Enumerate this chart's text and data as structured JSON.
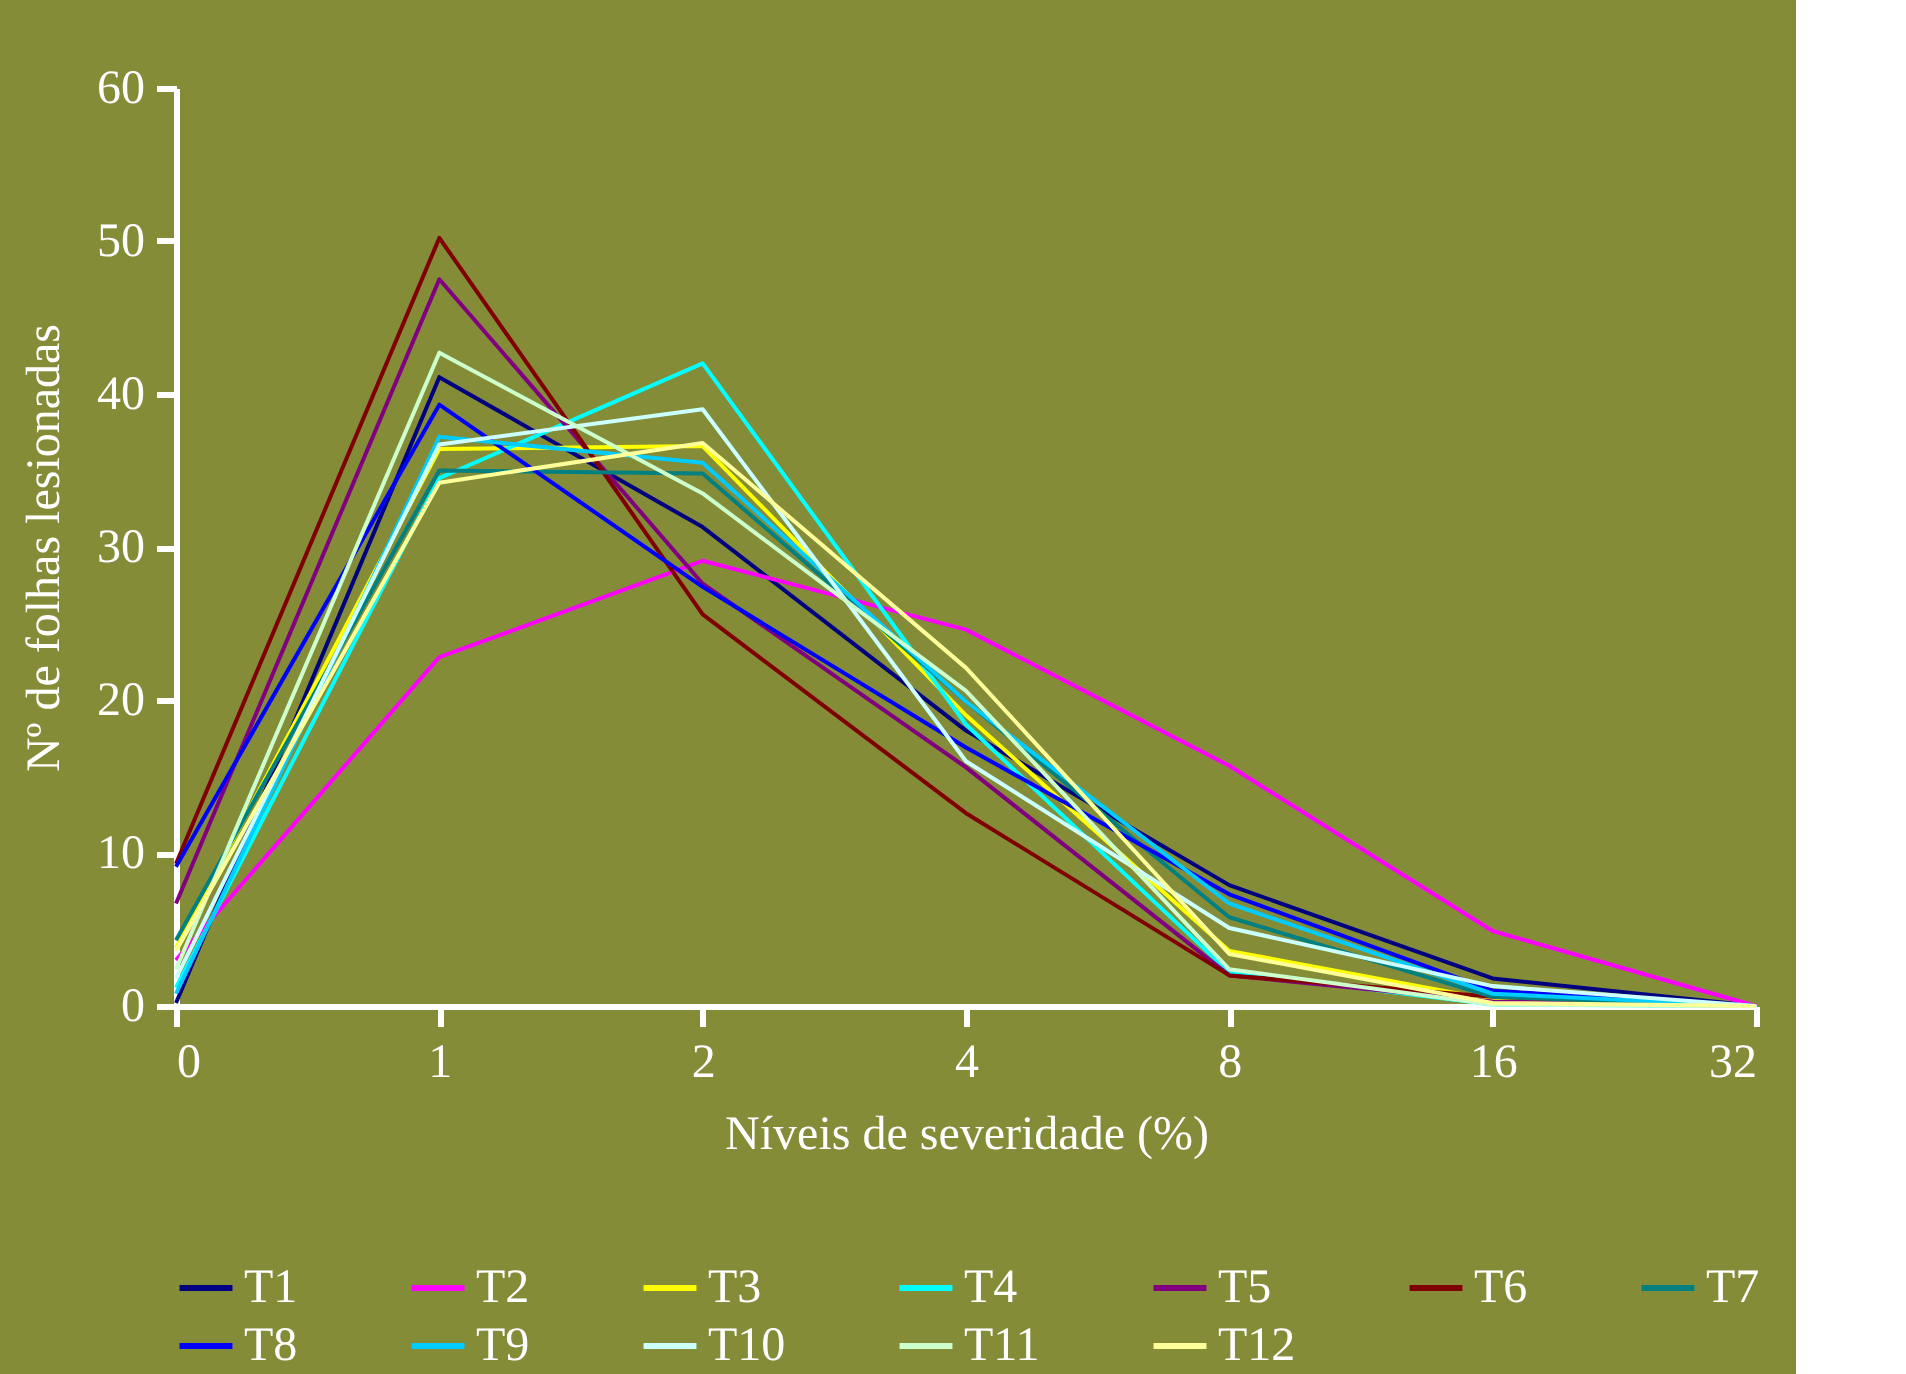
{
  "chart_data": {
    "type": "line",
    "xlabel": "Níveis de severidade (%)",
    "ylabel": "Nº de folhas lesionadas",
    "categories": [
      "0",
      "1",
      "2",
      "4",
      "8",
      "16",
      "32"
    ],
    "ylim": [
      0,
      60
    ],
    "yticks": [
      0,
      10,
      20,
      30,
      40,
      50,
      60
    ],
    "grid": false,
    "legend": "bottom",
    "marker": "none",
    "line_style": "solid",
    "series": [
      {
        "name": "T1",
        "color": "#000080",
        "values": [
          0.2,
          41.1,
          31.3,
          18.0,
          7.9,
          1.8,
          0
        ]
      },
      {
        "name": "T2",
        "color": "#ff00ff",
        "values": [
          3.0,
          22.8,
          29.1,
          24.6,
          15.7,
          4.9,
          0
        ]
      },
      {
        "name": "T3",
        "color": "#ffff00",
        "values": [
          3.8,
          36.4,
          36.6,
          19.0,
          3.6,
          0.4,
          0
        ]
      },
      {
        "name": "T4",
        "color": "#00ffff",
        "values": [
          1.2,
          34.5,
          42.0,
          18.4,
          2.2,
          0.1,
          0
        ]
      },
      {
        "name": "T5",
        "color": "#800080",
        "values": [
          6.7,
          47.5,
          27.6,
          15.6,
          2.0,
          0.3,
          0
        ]
      },
      {
        "name": "T6",
        "color": "#800000",
        "values": [
          9.3,
          50.2,
          25.6,
          12.6,
          2.0,
          0.6,
          0
        ]
      },
      {
        "name": "T7",
        "color": "#008080",
        "values": [
          4.3,
          35.0,
          34.8,
          19.9,
          5.8,
          0.6,
          0
        ]
      },
      {
        "name": "T8",
        "color": "#0000ff",
        "values": [
          9.1,
          39.3,
          27.4,
          16.9,
          7.3,
          1.0,
          0
        ]
      },
      {
        "name": "T9",
        "color": "#00ccff",
        "values": [
          0.8,
          37.2,
          35.5,
          19.9,
          6.7,
          0.8,
          0
        ]
      },
      {
        "name": "T10",
        "color": "#ccffff",
        "values": [
          1.8,
          36.7,
          39.0,
          16.0,
          5.1,
          1.3,
          0
        ]
      },
      {
        "name": "T11",
        "color": "#ccffcc",
        "values": [
          2.4,
          42.7,
          33.5,
          20.6,
          2.4,
          0.1,
          0
        ]
      },
      {
        "name": "T12",
        "color": "#ffff99",
        "values": [
          3.6,
          34.2,
          36.8,
          22.1,
          3.4,
          0.2,
          0
        ]
      }
    ]
  }
}
